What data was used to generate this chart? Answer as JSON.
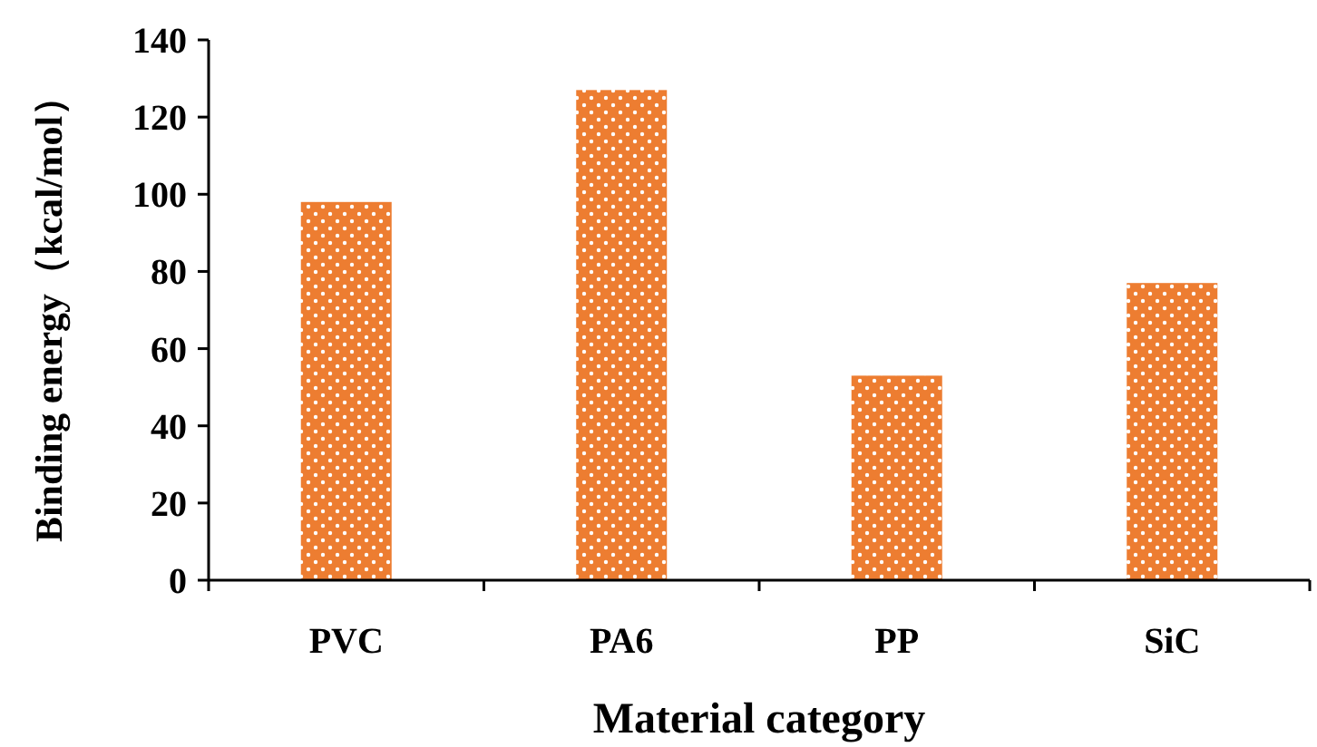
{
  "chart_data": {
    "type": "bar",
    "xlabel": "Material category",
    "ylabel": "Binding energy（kcal/mol）",
    "categories": [
      "PVC",
      "PA6",
      "PP",
      "SiC"
    ],
    "values": [
      98,
      127,
      53,
      77
    ],
    "color": "#ed7d31",
    "ylim": [
      0,
      140
    ],
    "yticks": [
      0,
      20,
      40,
      60,
      80,
      100,
      120,
      140
    ],
    "grid": false
  }
}
